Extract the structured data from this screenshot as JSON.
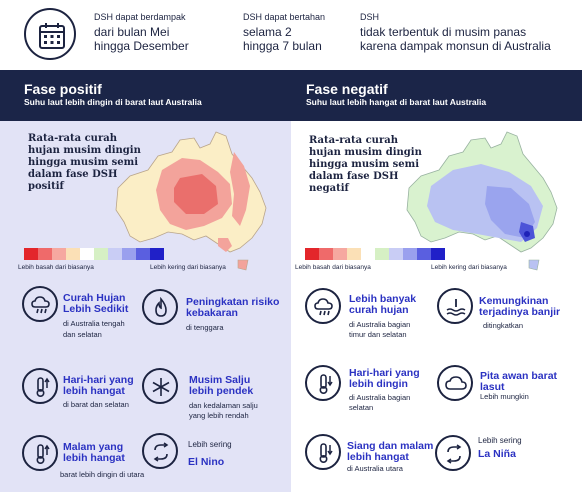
{
  "top": {
    "col1": {
      "label": "DSH dapat berdampak",
      "line1": "dari bulan Mei",
      "line2": "hingga Desember"
    },
    "col2": {
      "label": "DSH dapat bertahan",
      "line1": "selama 2",
      "line2": "hingga 7 bulan"
    },
    "col3": {
      "label": "DSH",
      "line1": "tidak terbentuk di musim panas",
      "line2": "karena dampak monsun di Australia"
    },
    "icon": "calendar-icon"
  },
  "left": {
    "title": "Fase positif",
    "subtitle": "Suhu laut lebih dingin di barat laut Australia",
    "map_text": [
      "Rata-rata curah",
      "hujan musim dingin",
      "hingga musim semi",
      "dalam fase DSH",
      "positif"
    ],
    "legend_left": "Lebih basah dari biasanya",
    "legend_right": "Lebih kering dari biasanya",
    "items": [
      {
        "icon": "rain-cloud-icon",
        "title1": "Curah Hujan",
        "title2": "Lebih Sedikit",
        "sub1": "di Australia tengah",
        "sub2": "dan selatan"
      },
      {
        "icon": "flame-icon",
        "title1": "Peningkatan risiko",
        "title2": "kebakaran",
        "sub1": "di tenggara",
        "sub2": ""
      },
      {
        "icon": "thermometer-up-icon",
        "title1": "Hari-hari yang",
        "title2": "lebih hangat",
        "sub1": "di barat dan selatan",
        "sub2": ""
      },
      {
        "icon": "snowflake-icon",
        "title1": "Musim Salju",
        "title2": "lebih pendek",
        "sub1": "dan kedalaman salju",
        "sub2": "yang lebih rendah"
      },
      {
        "icon": "thermometer-up-icon",
        "title1": "Malam yang",
        "title2": "lebih hangat",
        "sub1": "barat lebih dingin di utara",
        "sub2": ""
      },
      {
        "icon": "cycle-icon",
        "pre": "Lebih sering",
        "title1": "El Nino"
      }
    ]
  },
  "right": {
    "title": "Fase negatif",
    "subtitle": "Suhu laut lebih hangat di barat laut Australia",
    "map_text": [
      "Rata-rata curah",
      "hujan musim dingin",
      "hingga musim semi",
      "dalam fase DSH",
      "negatif"
    ],
    "legend_left": "Lebih basah dari biasanya",
    "legend_right": "Lebih kering dari biasanya",
    "items": [
      {
        "icon": "rain-cloud-icon",
        "title1": "Lebih banyak",
        "title2": "curah hujan",
        "sub1": "di Australia bagian",
        "sub2": "timur dan selatan"
      },
      {
        "icon": "flood-icon",
        "title1": "Kemungkinan",
        "title2": "terjadinya banjir",
        "sub1": "ditingkatkan",
        "sub2": ""
      },
      {
        "icon": "thermometer-down-icon",
        "title1": "Hari-hari yang",
        "title2": "lebih dingin",
        "sub1": "di Australia bagian",
        "sub2": "selatan"
      },
      {
        "icon": "cloud-icon",
        "title1": "Pita awan barat",
        "title2": "lasut",
        "sub1": "Lebih mungkin",
        "sub2": ""
      },
      {
        "icon": "thermometer-down-icon",
        "title1": "Siang dan malam",
        "title2": "lebih hangat",
        "sub1": "di Australia utara",
        "sub2": ""
      },
      {
        "icon": "cycle-icon",
        "pre": "Lebih sering",
        "title1": "La Niña"
      }
    ]
  },
  "colors": {
    "navy": "#1b2548",
    "accent_blue": "#2b32c2",
    "legend": [
      "#e3262b",
      "#ef6a6a",
      "#f6a8a0",
      "#fbe0b6",
      "#ffffff",
      "#d6f0c4",
      "#c9cdf5",
      "#9aa0ee",
      "#5a5fe0",
      "#2020c8"
    ]
  }
}
